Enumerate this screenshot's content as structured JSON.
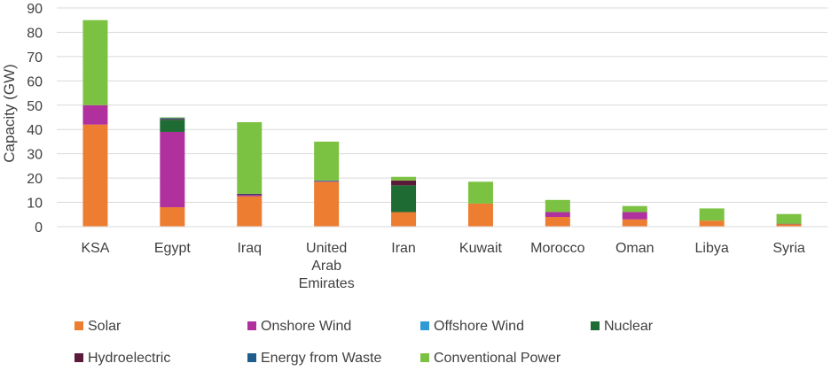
{
  "chart_data": {
    "type": "bar",
    "stacked": true,
    "ylabel": "Capacity (GW)",
    "ylim": [
      0,
      90
    ],
    "yticks": [
      0,
      10,
      20,
      30,
      40,
      50,
      60,
      70,
      80,
      90
    ],
    "grid": true,
    "legend_position": "bottom",
    "categories": [
      "KSA",
      "Egypt",
      "Iraq",
      "United Arab Emirates",
      "Iran",
      "Kuwait",
      "Morocco",
      "Oman",
      "Libya",
      "Syria"
    ],
    "series": [
      {
        "name": "Solar",
        "color": "#ED7D31",
        "values": [
          42,
          8,
          12.5,
          18.5,
          6,
          9.5,
          4,
          3,
          2.5,
          1
        ]
      },
      {
        "name": "Onshore Wind",
        "color": "#B0319E",
        "values": [
          8,
          31,
          0.5,
          0.2,
          0,
          0,
          2,
          3,
          0,
          0
        ]
      },
      {
        "name": "Offshore Wind",
        "color": "#2F9BD6",
        "values": [
          0,
          0,
          0,
          0,
          0,
          0,
          0,
          0,
          0,
          0
        ]
      },
      {
        "name": "Nuclear",
        "color": "#1E6B33",
        "values": [
          0,
          5,
          0,
          0,
          11,
          0,
          0,
          0,
          0,
          0
        ]
      },
      {
        "name": "Hydroelectric",
        "color": "#5C1A3B",
        "values": [
          0,
          0.3,
          0.3,
          0,
          2,
          0,
          0,
          0,
          0,
          0.2
        ]
      },
      {
        "name": "Energy from Waste",
        "color": "#1F5E8C",
        "values": [
          0,
          0.4,
          0.2,
          0.3,
          0,
          0,
          0,
          0,
          0,
          0
        ]
      },
      {
        "name": "Conventional Power",
        "color": "#7CC242",
        "values": [
          35,
          0.3,
          29.5,
          16,
          1.5,
          9,
          5,
          2.5,
          5,
          4
        ]
      }
    ]
  }
}
